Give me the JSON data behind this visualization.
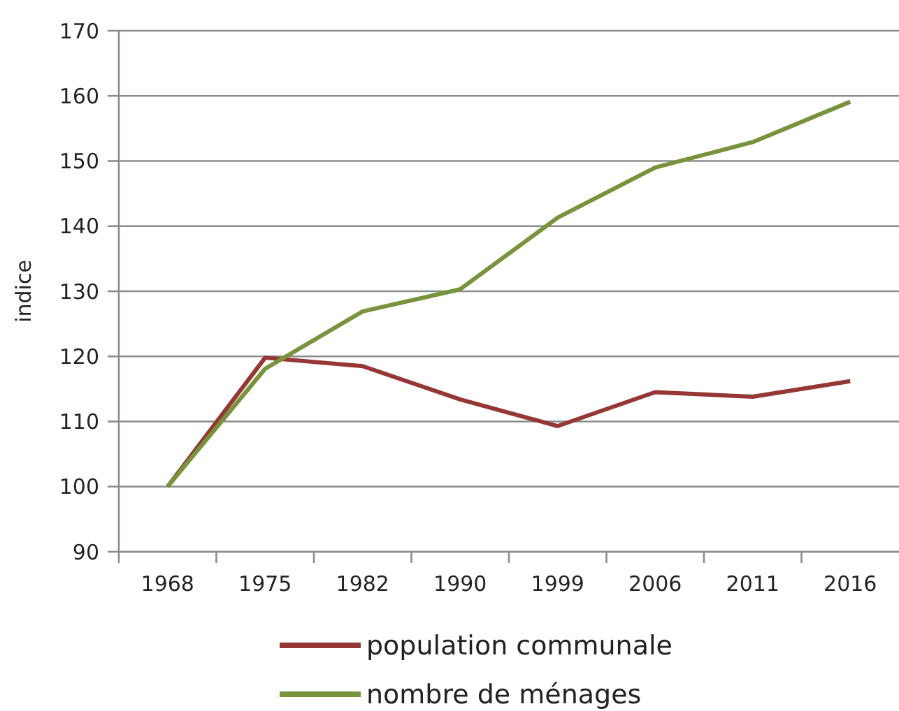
{
  "chart_data": {
    "type": "line",
    "ylabel": "indice",
    "categories": [
      "1968",
      "1975",
      "1982",
      "1990",
      "1999",
      "2006",
      "2011",
      "2016"
    ],
    "series": [
      {
        "name": "population communale",
        "color": "#953735",
        "values": [
          100,
          119.8,
          118.5,
          113.4,
          109.3,
          114.5,
          113.8,
          116.2
        ]
      },
      {
        "name": "nombre de ménages",
        "color": "#77933c",
        "values": [
          100,
          118.1,
          126.9,
          130.3,
          141.3,
          149.0,
          152.9,
          159.1
        ]
      }
    ],
    "ylim": [
      90,
      170
    ],
    "yticks": [
      90,
      100,
      110,
      120,
      130,
      140,
      150,
      160,
      170
    ],
    "grid": "y",
    "legend": "bottom",
    "marker": "none",
    "line_style": "solid"
  }
}
